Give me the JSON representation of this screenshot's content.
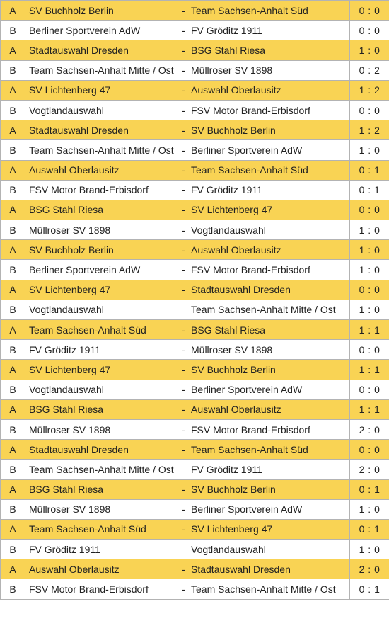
{
  "colors": {
    "row_a": "#f9d354",
    "row_b": "#ffffff",
    "border": "#b3b3b3"
  },
  "matches": [
    {
      "group": "A",
      "home": "SV Buchholz Berlin",
      "dash": "-",
      "away": "Team Sachsen-Anhalt Süd",
      "score": "0 : 0"
    },
    {
      "group": "B",
      "home": "Berliner Sportverein AdW",
      "dash": "-",
      "away": "FV Gröditz 1911",
      "score": "0 : 0"
    },
    {
      "group": "A",
      "home": "Stadtauswahl Dresden",
      "dash": "-",
      "away": "BSG Stahl Riesa",
      "score": "1 : 0"
    },
    {
      "group": "B",
      "home": "Team Sachsen-Anhalt Mitte / Ost",
      "dash": "-",
      "away": "Müllroser SV 1898",
      "score": "0 : 2"
    },
    {
      "group": "A",
      "home": "SV Lichtenberg 47",
      "dash": "-",
      "away": "Auswahl Oberlausitz",
      "score": "1 : 2"
    },
    {
      "group": "B",
      "home": "Vogtlandauswahl",
      "dash": "-",
      "away": "FSV Motor Brand-Erbisdorf",
      "score": "0 : 0"
    },
    {
      "group": "A",
      "home": "Stadtauswahl Dresden",
      "dash": "-",
      "away": "SV Buchholz Berlin",
      "score": "1 : 2"
    },
    {
      "group": "B",
      "home": "Team Sachsen-Anhalt Mitte / Ost",
      "dash": "-",
      "away": "Berliner Sportverein AdW",
      "score": "1 : 0"
    },
    {
      "group": "A",
      "home": "Auswahl Oberlausitz",
      "dash": "-",
      "away": "Team Sachsen-Anhalt Süd",
      "score": "0 : 1"
    },
    {
      "group": "B",
      "home": "FSV Motor Brand-Erbisdorf",
      "dash": "-",
      "away": "FV Gröditz 1911",
      "score": "0 : 1"
    },
    {
      "group": "A",
      "home": "BSG Stahl Riesa",
      "dash": "-",
      "away": "SV Lichtenberg 47",
      "score": "0 : 0"
    },
    {
      "group": "B",
      "home": "Müllroser SV 1898",
      "dash": "-",
      "away": "Vogtlandauswahl",
      "score": "1 : 0"
    },
    {
      "group": "A",
      "home": "SV Buchholz Berlin",
      "dash": "-",
      "away": "Auswahl Oberlausitz",
      "score": "1 : 0"
    },
    {
      "group": "B",
      "home": "Berliner Sportverein AdW",
      "dash": "-",
      "away": "FSV Motor Brand-Erbisdorf",
      "score": "1 : 0"
    },
    {
      "group": "A",
      "home": "SV Lichtenberg 47",
      "dash": "-",
      "away": "Stadtauswahl Dresden",
      "score": "0 : 0"
    },
    {
      "group": "B",
      "home": "Vogtlandauswahl",
      "dash": "",
      "away": "Team Sachsen-Anhalt Mitte / Ost",
      "score": "1 : 0"
    },
    {
      "group": "A",
      "home": "Team Sachsen-Anhalt Süd",
      "dash": "-",
      "away": "BSG Stahl Riesa",
      "score": "1 : 1"
    },
    {
      "group": "B",
      "home": "FV Gröditz 1911",
      "dash": "-",
      "away": "Müllroser SV 1898",
      "score": "0 : 0"
    },
    {
      "group": "A",
      "home": "SV Lichtenberg 47",
      "dash": "-",
      "away": "SV Buchholz Berlin",
      "score": "1 : 1"
    },
    {
      "group": "B",
      "home": "Vogtlandauswahl",
      "dash": "-",
      "away": "Berliner Sportverein AdW",
      "score": "0 : 0"
    },
    {
      "group": "A",
      "home": "BSG Stahl Riesa",
      "dash": "-",
      "away": "Auswahl Oberlausitz",
      "score": "1 : 1"
    },
    {
      "group": "B",
      "home": "Müllroser SV 1898",
      "dash": "-",
      "away": "FSV Motor Brand-Erbisdorf",
      "score": "2 : 0"
    },
    {
      "group": "A",
      "home": "Stadtauswahl Dresden",
      "dash": "-",
      "away": "Team Sachsen-Anhalt Süd",
      "score": "0 : 0"
    },
    {
      "group": "B",
      "home": "Team Sachsen-Anhalt Mitte / Ost",
      "dash": "",
      "away": "FV Gröditz 1911",
      "score": "2 : 0"
    },
    {
      "group": "A",
      "home": "BSG Stahl Riesa",
      "dash": "-",
      "away": "SV Buchholz Berlin",
      "score": "0 : 1"
    },
    {
      "group": "B",
      "home": "Müllroser SV 1898",
      "dash": "-",
      "away": "Berliner Sportverein AdW",
      "score": "1 : 0"
    },
    {
      "group": "A",
      "home": "Team Sachsen-Anhalt Süd",
      "dash": "-",
      "away": "SV Lichtenberg 47",
      "score": "0 : 1"
    },
    {
      "group": "B",
      "home": "FV Gröditz 1911",
      "dash": "",
      "away": "Vogtlandauswahl",
      "score": "1 : 0"
    },
    {
      "group": "A",
      "home": "Auswahl Oberlausitz",
      "dash": "-",
      "away": "Stadtauswahl Dresden",
      "score": "2 : 0"
    },
    {
      "group": "B",
      "home": "FSV Motor Brand-Erbisdorf",
      "dash": "-",
      "away": "Team Sachsen-Anhalt Mitte / Ost",
      "score": "0 : 1"
    }
  ]
}
